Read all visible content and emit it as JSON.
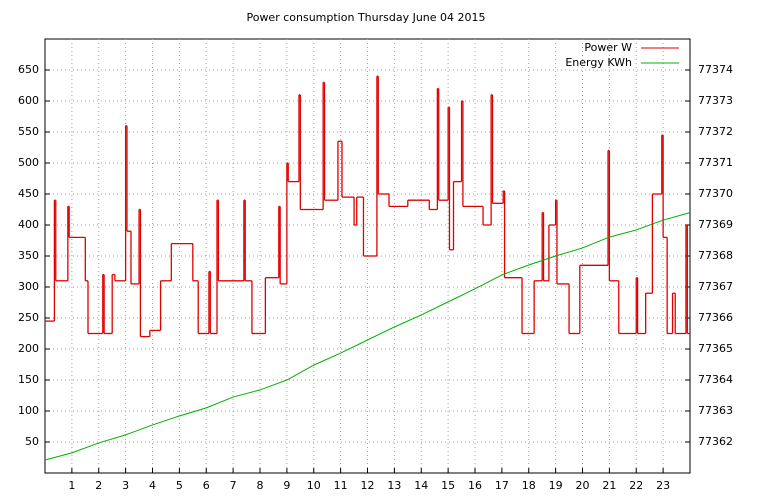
{
  "chart_data": {
    "type": "step-line",
    "title": "Power consumption Thursday June 04 2015",
    "xlim": [
      0,
      24
    ],
    "xticks": [
      1,
      2,
      3,
      4,
      5,
      6,
      7,
      8,
      9,
      10,
      11,
      12,
      13,
      14,
      15,
      16,
      17,
      18,
      19,
      20,
      21,
      22,
      23
    ],
    "ylim": [
      0,
      700
    ],
    "yticks": [
      50,
      100,
      150,
      200,
      250,
      300,
      350,
      400,
      450,
      500,
      550,
      600,
      650
    ],
    "y2lim": [
      77361,
      77375
    ],
    "y2ticks": [
      77362,
      77363,
      77364,
      77365,
      77366,
      77367,
      77368,
      77369,
      77370,
      77371,
      77372,
      77373,
      77374
    ],
    "grid": true,
    "legend": "top right",
    "series": [
      {
        "name": "Power W",
        "color": "#e00000",
        "step": true,
        "x": [
          0,
          0.35,
          0.4,
          0.85,
          0.9,
          1.5,
          1.6,
          2.15,
          2.2,
          2.5,
          2.6,
          3.0,
          3.05,
          3.2,
          3.5,
          3.55,
          3.9,
          4.3,
          4.7,
          5.5,
          5.7,
          6.1,
          6.15,
          6.4,
          6.45,
          7.4,
          7.45,
          7.7,
          8.2,
          8.7,
          8.75,
          9.0,
          9.05,
          9.45,
          9.5,
          10.35,
          10.4,
          10.9,
          11.05,
          11.5,
          11.6,
          11.85,
          12.35,
          12.4,
          12.8,
          13.5,
          14.3,
          14.6,
          14.65,
          15.0,
          15.05,
          15.2,
          15.5,
          15.55,
          16.3,
          16.6,
          16.65,
          17.05,
          17.1,
          17.75,
          18.2,
          18.5,
          18.55,
          18.75,
          19.0,
          19.05,
          19.5,
          19.9,
          20.95,
          21.0,
          21.35,
          22.0,
          22.05,
          22.35,
          22.6,
          22.95,
          23.0,
          23.15,
          23.35,
          23.45,
          23.85,
          23.9
        ],
        "values": [
          245,
          440,
          310,
          430,
          380,
          310,
          225,
          320,
          225,
          320,
          310,
          560,
          390,
          305,
          425,
          220,
          230,
          310,
          370,
          310,
          225,
          325,
          225,
          440,
          310,
          440,
          310,
          225,
          315,
          430,
          305,
          500,
          470,
          610,
          425,
          630,
          440,
          535,
          445,
          400,
          445,
          350,
          640,
          450,
          430,
          440,
          425,
          620,
          440,
          590,
          360,
          470,
          600,
          430,
          400,
          610,
          435,
          455,
          315,
          225,
          310,
          420,
          310,
          400,
          440,
          305,
          225,
          335,
          520,
          310,
          225,
          315,
          225,
          290,
          450,
          545,
          380,
          225,
          290,
          225,
          400,
          225
        ]
      },
      {
        "name": "Energy KWh",
        "color": "#00b000",
        "axis": "y2",
        "x": [
          0,
          1,
          2,
          3,
          4,
          5,
          6,
          7,
          8,
          9,
          10,
          11,
          12,
          13,
          14,
          15,
          16,
          17,
          18,
          19,
          20,
          21,
          22,
          23,
          24
        ],
        "values": [
          77361.42,
          77361.65,
          77361.97,
          77362.23,
          77362.55,
          77362.84,
          77363.1,
          77363.45,
          77363.68,
          77364.0,
          77364.48,
          77364.87,
          77365.29,
          77365.71,
          77366.1,
          77366.52,
          77366.94,
          77367.39,
          77367.71,
          77368.0,
          77368.26,
          77368.61,
          77368.84,
          77369.16,
          77369.4
        ]
      }
    ]
  }
}
